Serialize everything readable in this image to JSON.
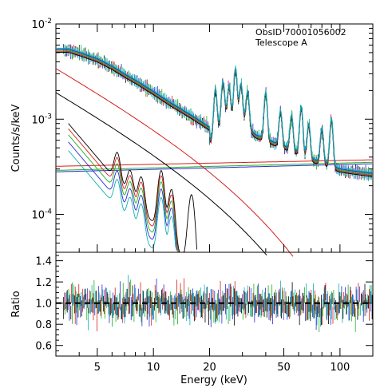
{
  "chart_data": [
    {
      "type": "line",
      "panel": "spectrum",
      "title": "",
      "annotation": [
        "ObsID 70001056002",
        "Telescope A"
      ],
      "xlabel": "",
      "ylabel": "Counts/s/keV",
      "xscale": "log",
      "yscale": "log",
      "xlim": [
        3,
        150
      ],
      "ylim": [
        4e-05,
        0.01
      ],
      "y_tick_values": [
        0.0001,
        0.001,
        0.01
      ],
      "y_tick_labels": [
        {
          "base": "10",
          "exp": "-4"
        },
        {
          "base": "10",
          "exp": "-3"
        },
        {
          "base": "10",
          "exp": "-2"
        }
      ],
      "data_colors": [
        "#000000",
        "#d81e1e",
        "#1cb31c",
        "#2b2bd8",
        "#10b0b0"
      ],
      "data_energies_keV": [
        3.5,
        4,
        5,
        6,
        7,
        8,
        10,
        12,
        15,
        18,
        20,
        22,
        24,
        26,
        28,
        30,
        35,
        40,
        50,
        60,
        70,
        80,
        90,
        100,
        120,
        150
      ],
      "data_approx_counts": [
        0.0053,
        0.0049,
        0.0042,
        0.0035,
        0.0029,
        0.0025,
        0.0019,
        0.0015,
        0.00115,
        0.00092,
        0.0008,
        0.0009,
        0.0016,
        0.0012,
        0.0015,
        0.0013,
        0.0009,
        0.0008,
        0.00068,
        0.00058,
        0.0005,
        0.00046,
        0.00042,
        0.00039,
        0.00037,
        0.00035
      ],
      "model_components": [
        {
          "label": "powerlaw",
          "color": "#d81e1e",
          "norm_at_3keV": 0.0034,
          "cutoff_keV": 40
        },
        {
          "label": "powerlaw",
          "color": "#000000",
          "norm_at_3keV": 0.0019,
          "cutoff_keV": 35
        },
        {
          "label": "background",
          "color": "#1cb31c",
          "norm_at_3keV": 0.00029,
          "slope": 0.05
        },
        {
          "label": "background",
          "color": "#d81e1e",
          "norm_at_3keV": 0.00032,
          "slope": 0.04
        },
        {
          "label": "background",
          "color": "#2b2bd8",
          "norm_at_3keV": 0.00028,
          "slope": 0.05
        }
      ],
      "line_energies_keV": [
        6.4,
        7.5,
        8.6,
        11,
        12.5,
        16,
        21.5,
        23.5,
        25.5,
        27.5,
        29.5,
        32,
        40,
        48,
        55,
        62,
        68,
        80,
        90
      ]
    },
    {
      "type": "scatter",
      "panel": "ratio",
      "title": "",
      "xlabel": "Energy (keV)",
      "ylabel": "Ratio",
      "xscale": "log",
      "xlim": [
        3,
        150
      ],
      "ylim": [
        0.5,
        1.48
      ],
      "reference_line": 1.0,
      "x_tick_values": [
        5,
        10,
        20,
        50,
        100
      ],
      "x_tick_labels": [
        "5",
        "10",
        "20",
        "50",
        "100"
      ],
      "y_tick_values": [
        0.6,
        0.8,
        1.0,
        1.2,
        1.4
      ],
      "y_tick_labels": [
        "0.6",
        "0.8",
        "1.0",
        "1.2",
        "1.4"
      ],
      "ratio_mean": 1.0,
      "ratio_scatter": 0.12
    }
  ]
}
